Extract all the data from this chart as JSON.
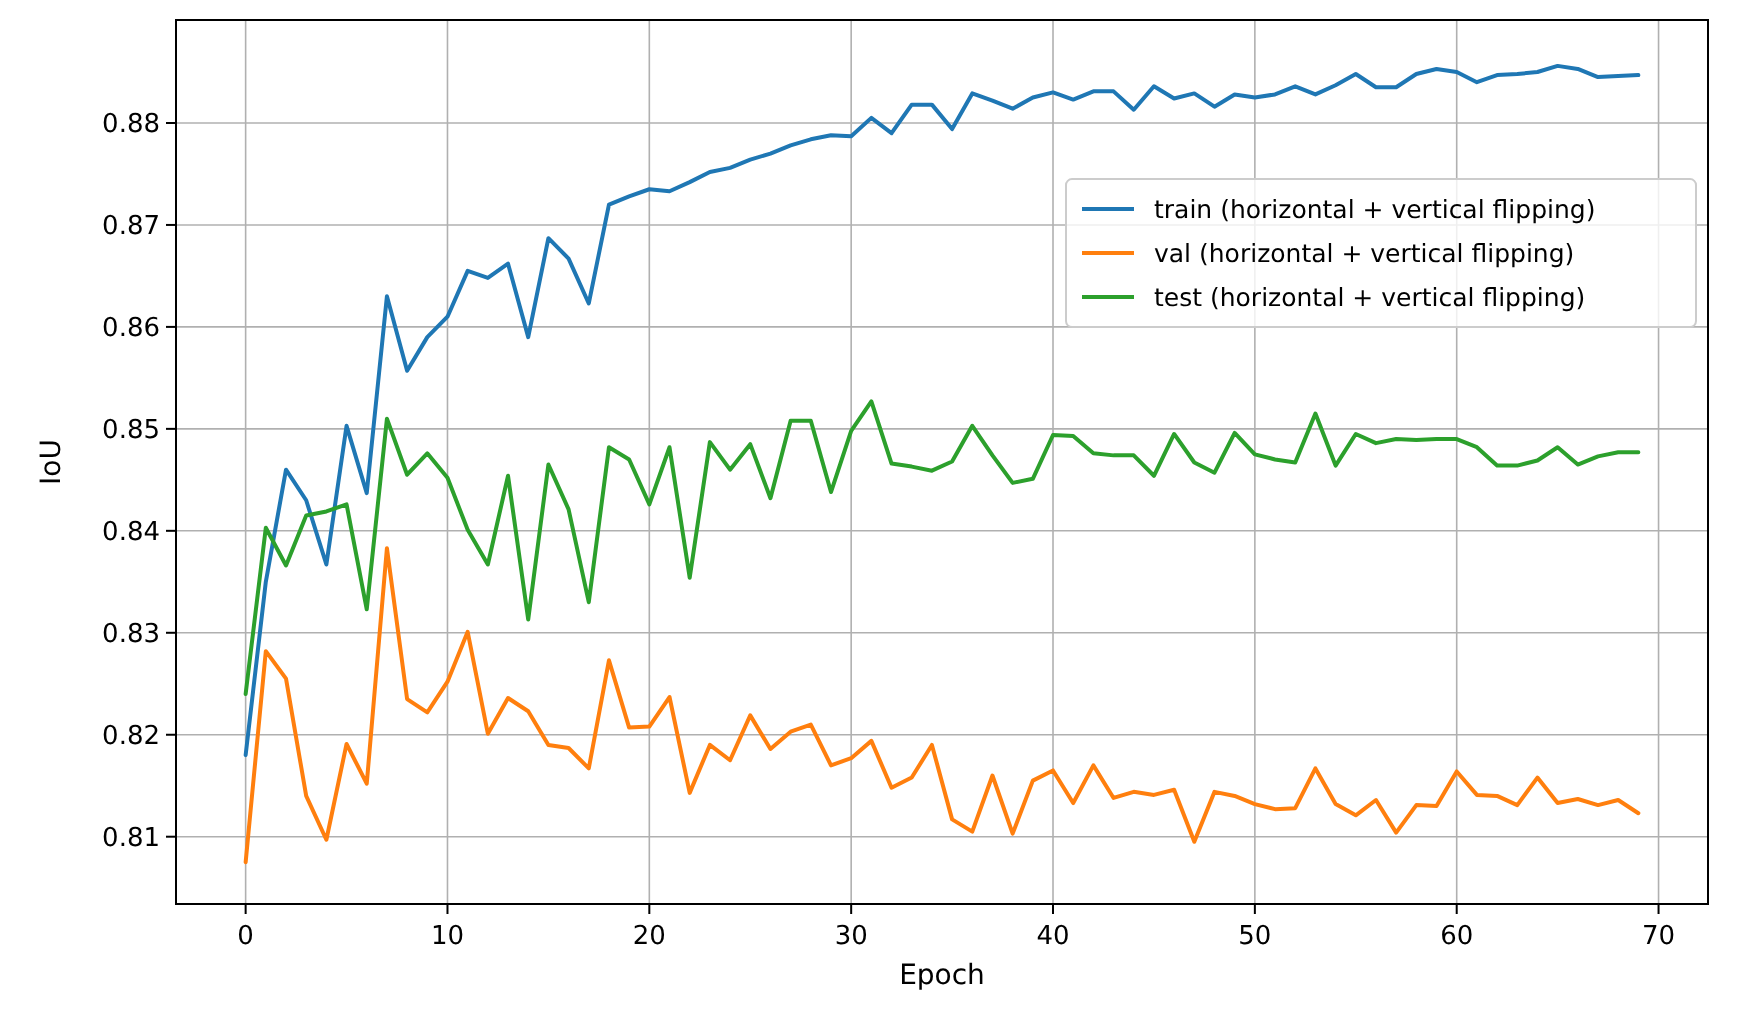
{
  "chart_data": {
    "type": "line",
    "xlabel": "Epoch",
    "ylabel": "IoU",
    "x": [
      0,
      1,
      2,
      3,
      4,
      5,
      6,
      7,
      8,
      9,
      10,
      11,
      12,
      13,
      14,
      15,
      16,
      17,
      18,
      19,
      20,
      21,
      22,
      23,
      24,
      25,
      26,
      27,
      28,
      29,
      30,
      31,
      32,
      33,
      34,
      35,
      36,
      37,
      38,
      39,
      40,
      41,
      42,
      43,
      44,
      45,
      46,
      47,
      48,
      49,
      50,
      51,
      52,
      53,
      54,
      55,
      56,
      57,
      58,
      59,
      60,
      61,
      62,
      63,
      64,
      65,
      66,
      67,
      68,
      69
    ],
    "series": [
      {
        "name": "train (horizontal + vertical flipping)",
        "color": "#1f77b4",
        "values": [
          0.818,
          0.835,
          0.846,
          0.843,
          0.8367,
          0.8503,
          0.8437,
          0.863,
          0.8557,
          0.859,
          0.861,
          0.8655,
          0.8648,
          0.8662,
          0.859,
          0.8687,
          0.8667,
          0.8623,
          0.872,
          0.8728,
          0.8735,
          0.8733,
          0.8742,
          0.8752,
          0.8756,
          0.8764,
          0.877,
          0.8778,
          0.8784,
          0.8788,
          0.8787,
          0.8805,
          0.879,
          0.8818,
          0.8818,
          0.8794,
          0.8829,
          0.8822,
          0.8814,
          0.8825,
          0.883,
          0.8823,
          0.8831,
          0.8831,
          0.8813,
          0.8836,
          0.8824,
          0.8829,
          0.8816,
          0.8828,
          0.8825,
          0.8828,
          0.8836,
          0.8828,
          0.8837,
          0.8848,
          0.8835,
          0.8835,
          0.8848,
          0.8853,
          0.885,
          0.884,
          0.8847,
          0.8848,
          0.885,
          0.8856,
          0.8853,
          0.8845,
          0.8846,
          0.8847
        ]
      },
      {
        "name": "val (horizontal + vertical flipping)",
        "color": "#ff7f0e",
        "values": [
          0.8075,
          0.8282,
          0.8255,
          0.814,
          0.8097,
          0.8191,
          0.8152,
          0.8383,
          0.8235,
          0.8222,
          0.8252,
          0.8301,
          0.8201,
          0.8236,
          0.8223,
          0.819,
          0.8187,
          0.8167,
          0.8273,
          0.8207,
          0.8208,
          0.8237,
          0.8143,
          0.819,
          0.8175,
          0.8219,
          0.8186,
          0.8203,
          0.821,
          0.817,
          0.8177,
          0.8194,
          0.8148,
          0.8158,
          0.819,
          0.8117,
          0.8105,
          0.816,
          0.8103,
          0.8155,
          0.8165,
          0.8133,
          0.817,
          0.8138,
          0.8144,
          0.8141,
          0.8146,
          0.8095,
          0.8144,
          0.814,
          0.8132,
          0.8127,
          0.8128,
          0.8167,
          0.8132,
          0.8121,
          0.8136,
          0.8104,
          0.8131,
          0.813,
          0.8164,
          0.8141,
          0.814,
          0.8131,
          0.8158,
          0.8133,
          0.8137,
          0.8131,
          0.8136,
          0.8123
        ]
      },
      {
        "name": "test (horizontal + vertical flipping)",
        "color": "#2ca02c",
        "values": [
          0.824,
          0.8403,
          0.8366,
          0.8415,
          0.8419,
          0.8426,
          0.8323,
          0.851,
          0.8455,
          0.8476,
          0.8452,
          0.8401,
          0.8367,
          0.8454,
          0.8313,
          0.8465,
          0.8421,
          0.833,
          0.8482,
          0.847,
          0.8426,
          0.8482,
          0.8354,
          0.8487,
          0.846,
          0.8485,
          0.8432,
          0.8508,
          0.8508,
          0.8438,
          0.8498,
          0.8527,
          0.8466,
          0.8463,
          0.8459,
          0.8468,
          0.8503,
          0.8474,
          0.8447,
          0.8451,
          0.8494,
          0.8493,
          0.8476,
          0.8474,
          0.8474,
          0.8454,
          0.8495,
          0.8467,
          0.8457,
          0.8496,
          0.8475,
          0.847,
          0.8467,
          0.8515,
          0.8464,
          0.8495,
          0.8486,
          0.849,
          0.8489,
          0.849,
          0.849,
          0.8482,
          0.8464,
          0.8464,
          0.8469,
          0.8482,
          0.8465,
          0.8473,
          0.8477,
          0.8477
        ]
      }
    ],
    "xlim": [
      -3.45,
      72.45
    ],
    "ylim": [
      0.8034,
      0.8901
    ],
    "xticks": [
      0,
      10,
      20,
      30,
      40,
      50,
      60,
      70
    ],
    "yticks": [
      {
        "value": 0.81,
        "label": "0.81"
      },
      {
        "value": 0.82,
        "label": "0.82"
      },
      {
        "value": 0.83,
        "label": "0.83"
      },
      {
        "value": 0.84,
        "label": "0.84"
      },
      {
        "value": 0.85,
        "label": "0.85"
      },
      {
        "value": 0.86,
        "label": "0.86"
      },
      {
        "value": 0.87,
        "label": "0.87"
      },
      {
        "value": 0.88,
        "label": "0.88"
      }
    ],
    "grid": true,
    "legend": "right",
    "marker": "none",
    "line_style": "solid"
  }
}
